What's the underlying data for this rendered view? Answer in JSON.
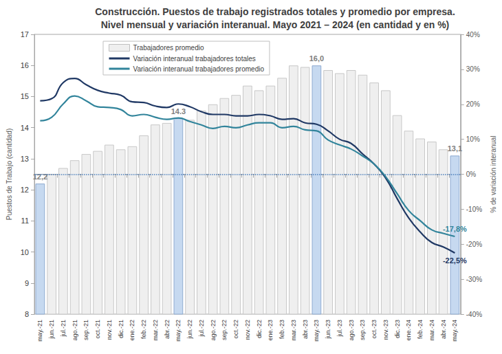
{
  "chart_data": {
    "type": "bar",
    "title": "Construcción. Puestos de trabajo registrados totales y promedio por empresa.\nNivel mensual y variación interanual. Mayo 2021 – 2024 (en cantidad y en %)",
    "ylabel": "Puestos de Trabajo (cantidad)",
    "y2label": "% de variación interanual",
    "categories": [
      "may.-21",
      "jun.-21",
      "jul.-21",
      "ago.-21",
      "sep.-21",
      "oct.-21",
      "nov.-21",
      "dic.-21",
      "ene.-22",
      "feb.-22",
      "mar.-22",
      "abr.-22",
      "may.-22",
      "jun.-22",
      "jul.-22",
      "ago.-22",
      "sep.-22",
      "oct.-22",
      "nov.-22",
      "dic.-22",
      "ene.-23",
      "feb.-23",
      "mar.-23",
      "abr.-23",
      "may.-23",
      "jun.-23",
      "jul.-23",
      "ago.-23",
      "sep.-23",
      "oct.-23",
      "nov.-23",
      "dic.-23",
      "ene.-24",
      "feb.-24",
      "mar.-24",
      "abr.-24",
      "may.-24"
    ],
    "ylim": [
      8,
      17
    ],
    "yticks": [
      8,
      9,
      10,
      11,
      12,
      13,
      14,
      15,
      16,
      17
    ],
    "y2lim": [
      -40,
      40
    ],
    "y2ticks": [
      {
        "value": -40,
        "label": "-40%"
      },
      {
        "value": -30,
        "label": "-30%"
      },
      {
        "value": -20,
        "label": "-20%"
      },
      {
        "value": -10,
        "label": "-10%"
      },
      {
        "value": 0,
        "label": "0%"
      },
      {
        "value": 10,
        "label": "10%"
      },
      {
        "value": 20,
        "label": "20%"
      },
      {
        "value": 30,
        "label": "30%"
      },
      {
        "value": 40,
        "label": "40%"
      }
    ],
    "grid": false,
    "legend": "upper left",
    "series": [
      {
        "name": "Trabajadores promedio",
        "type": "bar",
        "colors": [
          "#c6d9f0",
          "#efefef",
          "#efefef",
          "#efefef",
          "#efefef",
          "#efefef",
          "#efefef",
          "#efefef",
          "#efefef",
          "#efefef",
          "#efefef",
          "#efefef",
          "#c6d9f0",
          "#efefef",
          "#efefef",
          "#efefef",
          "#efefef",
          "#efefef",
          "#efefef",
          "#efefef",
          "#efefef",
          "#efefef",
          "#efefef",
          "#efefef",
          "#c6d9f0",
          "#efefef",
          "#efefef",
          "#efefef",
          "#efefef",
          "#efefef",
          "#efefef",
          "#efefef",
          "#efefef",
          "#efefef",
          "#efefef",
          "#efefef",
          "#c6d9f0"
        ],
        "values": [
          12.2,
          12.5,
          12.7,
          12.95,
          13.15,
          13.25,
          13.45,
          13.3,
          13.4,
          13.75,
          14.1,
          14.15,
          14.3,
          14.25,
          14.55,
          14.75,
          14.95,
          15.05,
          15.35,
          15.2,
          15.35,
          15.6,
          16.0,
          15.95,
          16.0,
          15.85,
          15.75,
          15.85,
          15.7,
          15.45,
          15.2,
          14.4,
          13.9,
          13.65,
          13.55,
          13.3,
          13.1
        ],
        "value_labels": [
          "12,2",
          null,
          null,
          null,
          null,
          null,
          null,
          null,
          null,
          null,
          null,
          null,
          "14.3",
          null,
          null,
          null,
          null,
          null,
          null,
          null,
          null,
          null,
          null,
          null,
          "16,0",
          null,
          null,
          null,
          null,
          null,
          null,
          null,
          null,
          null,
          null,
          null,
          "13,1"
        ]
      },
      {
        "name": "Variación interanual trabajadores totales",
        "type": "line",
        "axis": "y2",
        "color": "#1f3864",
        "values": [
          21.0,
          21.6,
          26.2,
          27.4,
          25.6,
          24.0,
          23.2,
          22.6,
          20.7,
          20.5,
          19.5,
          19.1,
          20.1,
          19.3,
          17.9,
          17.1,
          17.1,
          16.7,
          16.7,
          17.1,
          16.7,
          15.7,
          15.9,
          14.7,
          14.3,
          12.4,
          10.0,
          8.8,
          5.8,
          2.9,
          -1.1,
          -7.0,
          -12.5,
          -16.5,
          -19.5,
          -20.8,
          -22.5
        ],
        "value_labels": [
          null,
          null,
          null,
          null,
          null,
          null,
          null,
          null,
          null,
          null,
          null,
          null,
          null,
          null,
          null,
          null,
          null,
          null,
          null,
          null,
          null,
          null,
          null,
          null,
          null,
          null,
          null,
          null,
          null,
          null,
          null,
          null,
          null,
          null,
          null,
          null,
          "-22,5%"
        ]
      },
      {
        "name": "Variación interanual trabajadores promedio",
        "type": "line",
        "axis": "y2",
        "color": "#31849b",
        "values": [
          15.3,
          16.3,
          20.1,
          22.4,
          21.0,
          19.3,
          19.1,
          18.5,
          16.7,
          17.1,
          16.3,
          15.7,
          16.1,
          15.1,
          14.1,
          13.1,
          13.7,
          13.3,
          14.1,
          14.7,
          14.7,
          13.3,
          13.7,
          12.7,
          12.4,
          9.8,
          8.4,
          7.2,
          5.2,
          2.9,
          -0.7,
          -5.6,
          -10.4,
          -13.3,
          -15.9,
          -16.9,
          -17.8
        ],
        "value_labels": [
          null,
          null,
          null,
          null,
          null,
          null,
          null,
          null,
          null,
          null,
          null,
          null,
          null,
          null,
          null,
          null,
          null,
          null,
          null,
          null,
          null,
          null,
          null,
          null,
          null,
          null,
          null,
          null,
          null,
          null,
          null,
          null,
          null,
          null,
          null,
          null,
          "-17,8%"
        ]
      }
    ]
  }
}
